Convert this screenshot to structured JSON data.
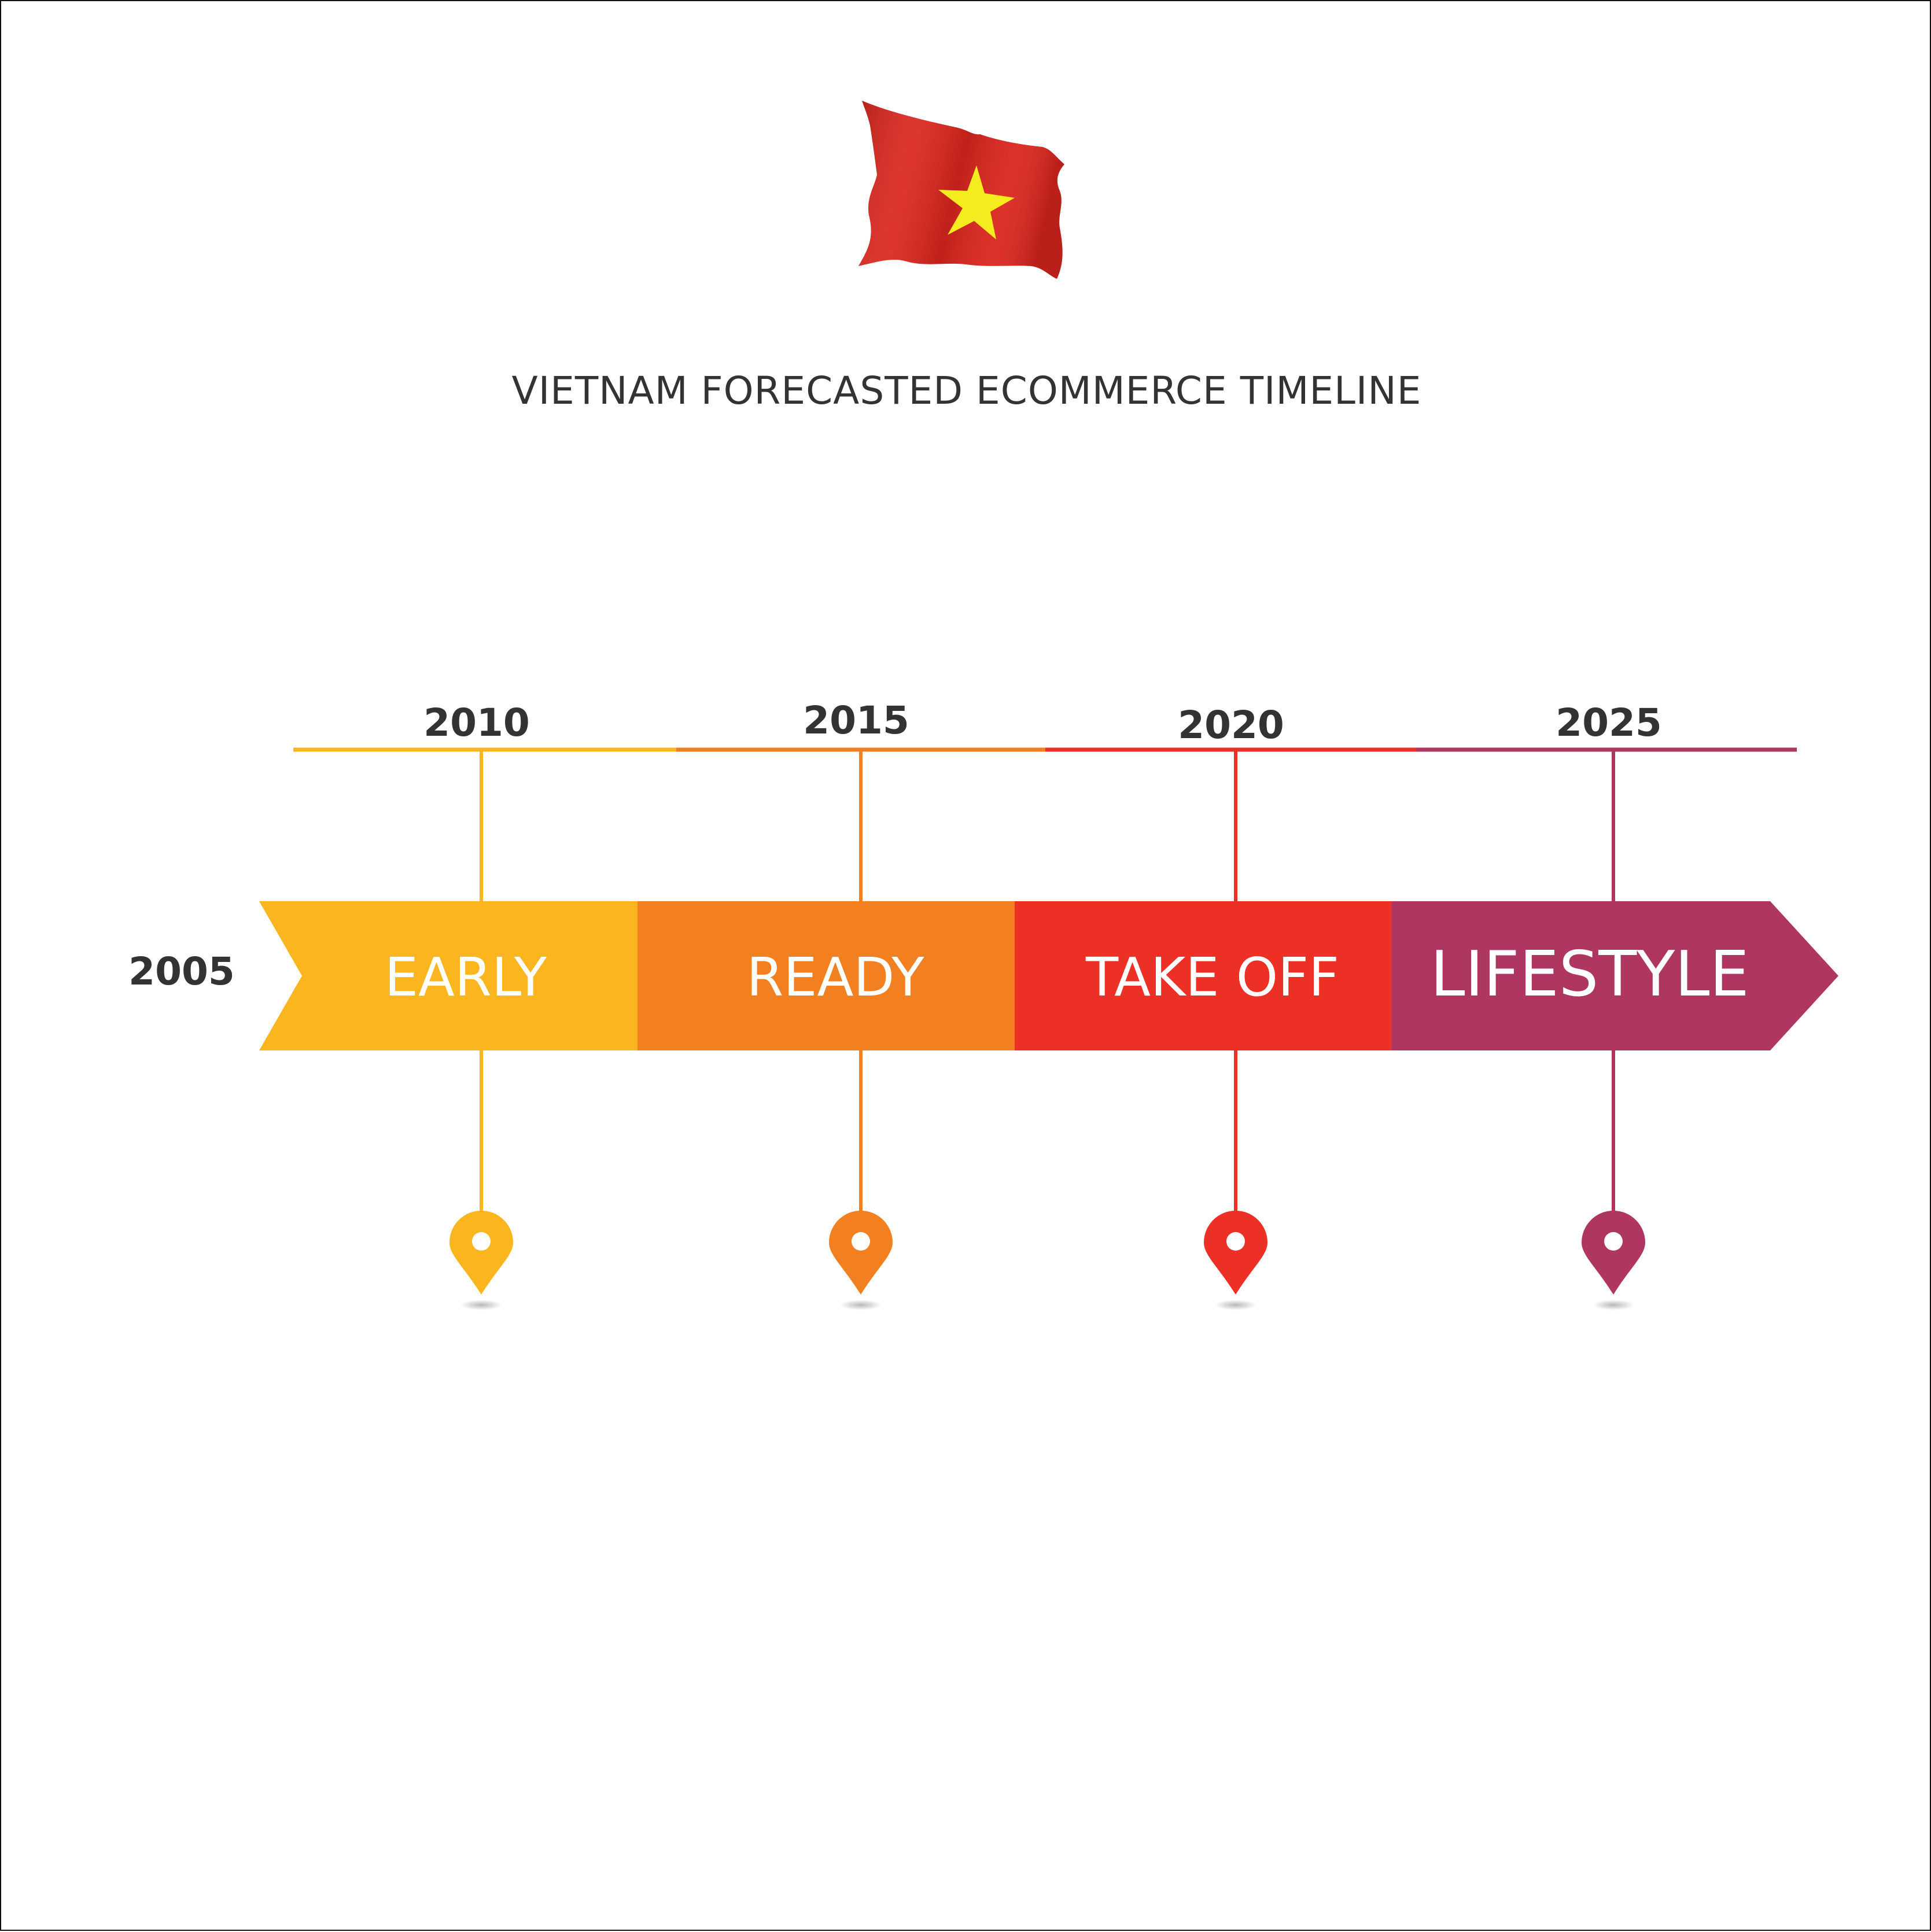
{
  "title": "VIETNAM FORECASTED ECOMMERCE TIMELINE",
  "start_year": "2005",
  "colors": {
    "flag_red": "#DA251D",
    "flag_star": "#F4EC1F",
    "text_dark": "#333333"
  },
  "stages": [
    {
      "year": "2010",
      "label": "EARLY",
      "color": "#FBB51E"
    },
    {
      "year": "2015",
      "label": "READY",
      "color": "#F28021"
    },
    {
      "year": "2020",
      "label": "TAKE OFF",
      "color": "#EC3026"
    },
    {
      "year": "2025",
      "label": "LIFESTYLE",
      "color": "#B03662"
    }
  ]
}
